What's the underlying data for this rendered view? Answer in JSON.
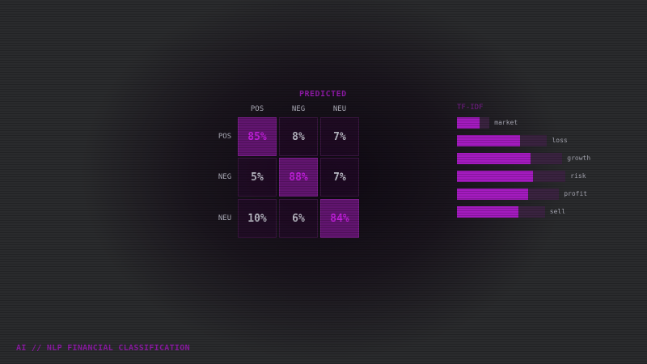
{
  "matrix": {
    "title": "PREDICTED",
    "columns": [
      "POS",
      "NEG",
      "NEU"
    ],
    "rows": [
      "POS",
      "NEG",
      "NEU"
    ],
    "cells": [
      [
        "85%",
        "8%",
        "7%"
      ],
      [
        "5%",
        "88%",
        "7%"
      ],
      [
        "10%",
        "6%",
        "84%"
      ]
    ]
  },
  "tfidf": {
    "title": "TF-IDF",
    "terms": [
      {
        "label": "market",
        "weight": 0.3
      },
      {
        "label": "loss",
        "weight": 0.83
      },
      {
        "label": "growth",
        "weight": 0.97
      },
      {
        "label": "risk",
        "weight": 1.0
      },
      {
        "label": "profit",
        "weight": 0.94
      },
      {
        "label": "sell",
        "weight": 0.81
      }
    ]
  },
  "footer": "AI // NLP FINANCIAL CLASSIFICATION",
  "colors": {
    "accent": "#a41bbf",
    "highlight_cell": "#61156f",
    "background": "#2a2b2d"
  }
}
